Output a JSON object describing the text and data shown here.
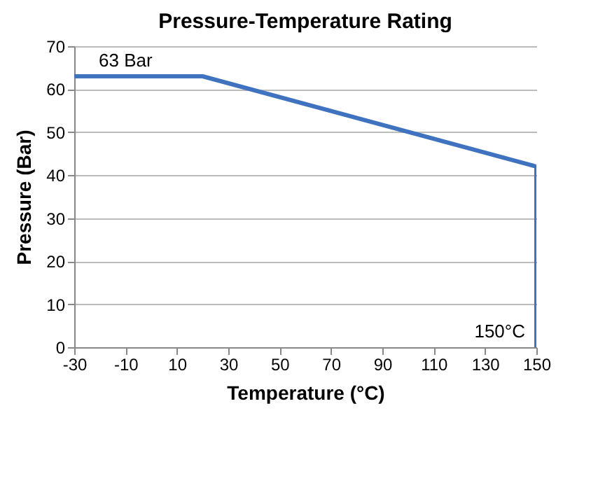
{
  "chart_data": {
    "type": "line",
    "title": "Pressure-Temperature Rating",
    "xlabel": "Temperature (°C)",
    "ylabel": "Pressure (Bar)",
    "x": [
      -30,
      20,
      150,
      150
    ],
    "series": [
      {
        "color": "#3f73c0",
        "values": [
          63,
          63,
          42,
          0
        ]
      }
    ],
    "xlim": [
      -30,
      150
    ],
    "xticks": [
      -30,
      -10,
      10,
      30,
      50,
      70,
      90,
      110,
      130,
      150
    ],
    "ylim": [
      0,
      70
    ],
    "yticks": [
      0,
      10,
      20,
      30,
      40,
      50,
      60,
      70
    ],
    "grid": "y",
    "marker": "none",
    "line_style": "solid",
    "annotations": [
      {
        "text": "63 Bar",
        "x": -10,
        "y": 63
      },
      {
        "text": "150°C",
        "x": 150,
        "y": 0
      }
    ]
  }
}
